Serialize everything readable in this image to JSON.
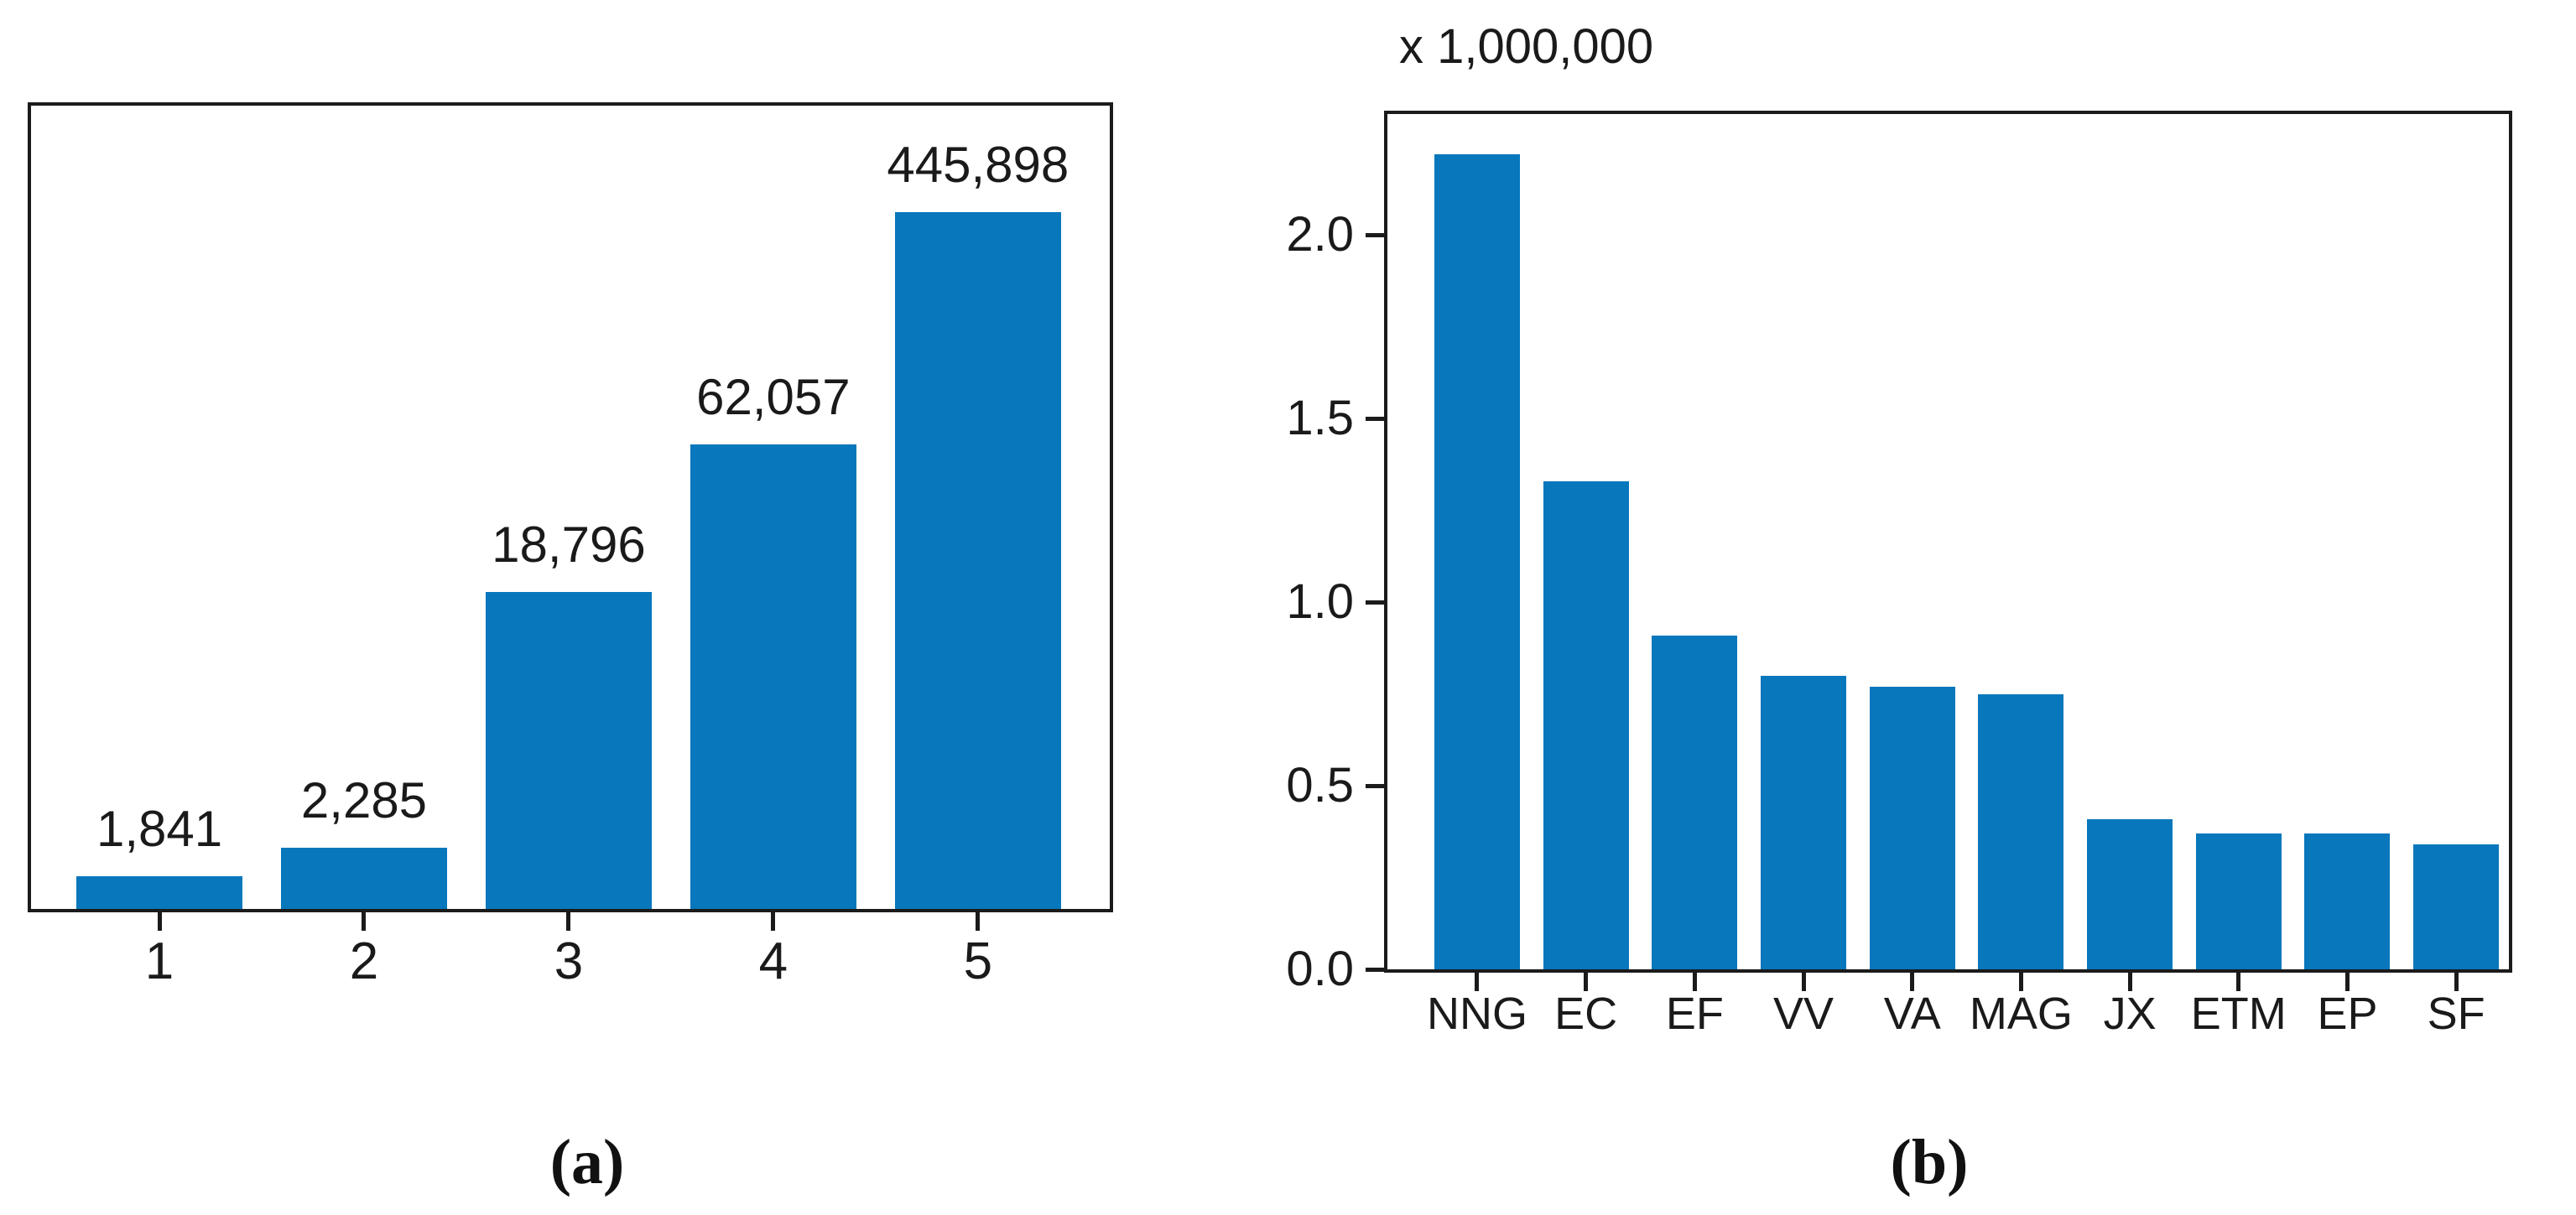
{
  "figure": {
    "bar_color": "#0877BC",
    "axis_color": "#1b1b1b",
    "text_color": "#1a1a1a",
    "background_color": "#ffffff"
  },
  "chart_data": [
    {
      "id": "a",
      "type": "bar",
      "caption": "(a)",
      "categories": [
        "1",
        "2",
        "3",
        "4",
        "5"
      ],
      "values": [
        1841,
        2285,
        18796,
        62057,
        445898
      ],
      "value_labels": [
        "1,841",
        "2,285",
        "18,796",
        "62,057",
        "445,898"
      ],
      "yaxis_shown": false,
      "grid": false,
      "legend": "none",
      "yscale": "log-like (no axis labels shown)",
      "bar_height_fractions": [
        0.041,
        0.076,
        0.395,
        0.578,
        0.867
      ]
    },
    {
      "id": "b",
      "type": "bar",
      "caption": "(b)",
      "title": "x 1,000,000",
      "unit_multiplier": 1000000,
      "categories": [
        "NNG",
        "EC",
        "EF",
        "VV",
        "VA",
        "MAG",
        "JX",
        "ETM",
        "EP",
        "SF"
      ],
      "values": [
        2.22,
        1.33,
        0.91,
        0.8,
        0.77,
        0.75,
        0.41,
        0.37,
        0.37,
        0.34
      ],
      "values_estimated_from_pixels": true,
      "ytick_labels": [
        "0.0",
        "0.5",
        "1.0",
        "1.5",
        "2.0"
      ],
      "ylim": [
        0,
        2.33
      ],
      "grid": false,
      "legend": "none"
    }
  ]
}
